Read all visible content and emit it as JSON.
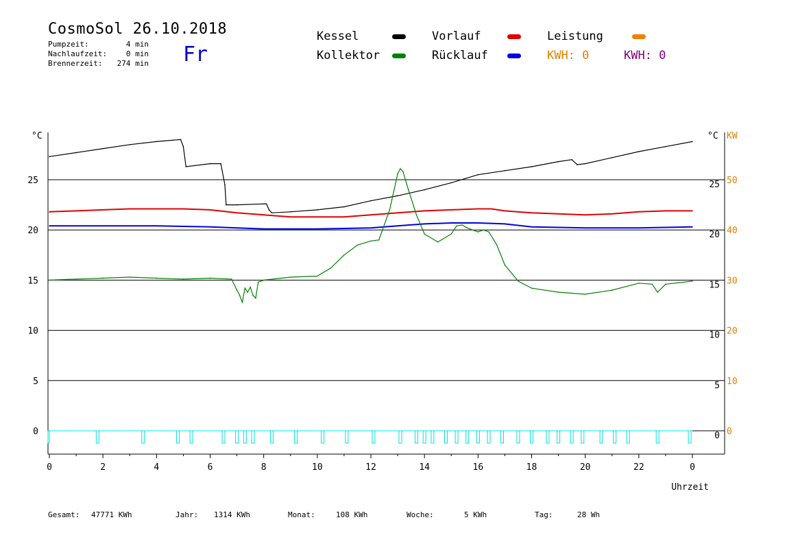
{
  "header": {
    "title": "CosmoSol 26.10.2018",
    "pumpzeit_label": "Pumpzeit:",
    "pumpzeit_value": "4 min",
    "nachlauf_label": "Nachlaufzeit:",
    "nachlauf_value": "0 min",
    "brenner_label": "Brennerzeit:",
    "brenner_value": "274 min",
    "day": "Fr"
  },
  "legend": {
    "kessel": "Kessel",
    "kollektor": "Kollektor",
    "vorlauf": "Vorlauf",
    "ruecklauf": "Rücklauf",
    "leistung": "Leistung",
    "kwh1": "KWH: 0",
    "kwh2": "KWH: 0"
  },
  "colors": {
    "kessel": "#000000",
    "kollektor": "#008000",
    "vorlauf": "#e00000",
    "ruecklauf": "#0000e0",
    "leistung": "#f08000",
    "kwh2": "#800080",
    "pump": "#00e0e0",
    "kw_axis": "#e08000"
  },
  "footer": {
    "gesamt_label": "Gesamt:",
    "gesamt_value": "47771 KWh",
    "jahr_label": "Jahr:",
    "jahr_value": "1314 KWh",
    "monat_label": "Monat:",
    "monat_value": "108 KWh",
    "woche_label": "Woche:",
    "woche_value": "5 KWh",
    "tag_label": "Tag:",
    "tag_value": "28 Wh"
  },
  "chart_data": {
    "type": "line",
    "xlabel": "Uhrzeit",
    "ylabel_left": "°C",
    "ylabel_right_1": "°C",
    "ylabel_right_2": "KW",
    "xlim": [
      0,
      24
    ],
    "ylim": [
      -2.2,
      30
    ],
    "x_ticks": [
      "0",
      "2",
      "4",
      "6",
      "8",
      "10",
      "12",
      "14",
      "16",
      "18",
      "20",
      "22",
      "0"
    ],
    "y_ticks": [
      0,
      5,
      10,
      15,
      20,
      25
    ],
    "kw_ticks": [
      0,
      10,
      20,
      30,
      40,
      50
    ],
    "grid": true,
    "series": [
      {
        "name": "Kessel",
        "color": "#000000",
        "x": [
          0,
          1,
          2,
          3,
          4,
          4.9,
          5,
          5.1,
          6,
          6.4,
          6.55,
          6.6,
          7,
          8.1,
          8.2,
          8.3,
          9,
          10,
          11,
          12,
          13,
          14,
          15,
          16,
          17,
          18,
          19,
          19.5,
          19.7,
          20,
          21,
          22,
          23,
          24
        ],
        "y": [
          27.3,
          27.7,
          28.1,
          28.5,
          28.8,
          29.0,
          28.3,
          26.3,
          26.6,
          26.6,
          24.5,
          22.5,
          22.5,
          22.6,
          22.0,
          21.7,
          21.8,
          22.0,
          22.3,
          22.9,
          23.4,
          24.0,
          24.7,
          25.5,
          25.9,
          26.3,
          26.8,
          27.0,
          26.5,
          26.6,
          27.2,
          27.8,
          28.3,
          28.8
        ]
      },
      {
        "name": "Vorlauf",
        "color": "#e00000",
        "x": [
          0,
          1,
          2,
          3,
          4,
          5,
          6,
          7,
          8,
          9,
          10,
          11,
          12,
          13,
          14,
          15,
          16,
          16.5,
          17,
          18,
          19,
          20,
          21,
          22,
          23,
          24
        ],
        "y": [
          21.8,
          21.9,
          22.0,
          22.1,
          22.1,
          22.1,
          22.0,
          21.7,
          21.5,
          21.3,
          21.3,
          21.3,
          21.5,
          21.7,
          21.9,
          22.0,
          22.1,
          22.1,
          21.9,
          21.7,
          21.6,
          21.5,
          21.6,
          21.8,
          21.9,
          21.9
        ]
      },
      {
        "name": "Rücklauf",
        "color": "#0000e0",
        "x": [
          0,
          2,
          4,
          6,
          8,
          10,
          12,
          13,
          14,
          15,
          16,
          17,
          18,
          20,
          22,
          24
        ],
        "y": [
          20.4,
          20.4,
          20.4,
          20.3,
          20.1,
          20.1,
          20.2,
          20.4,
          20.6,
          20.7,
          20.7,
          20.6,
          20.3,
          20.2,
          20.2,
          20.3
        ],
        "flat_ends": [
          0,
          5,
          10,
          20
        ]
      },
      {
        "name": "Kollektor",
        "color": "#008000",
        "x": [
          0,
          1,
          2,
          3,
          4,
          5,
          6,
          6.8,
          7.0,
          7.1,
          7.2,
          7.3,
          7.4,
          7.5,
          7.6,
          7.7,
          7.8,
          8,
          9,
          10,
          10.5,
          11,
          11.5,
          12,
          12.3,
          12.7,
          13.0,
          13.1,
          13.2,
          13.4,
          13.7,
          14,
          14.5,
          15,
          15.2,
          15.4,
          15.6,
          16,
          16.2,
          16.4,
          16.7,
          17,
          17.5,
          18,
          19,
          20,
          21,
          22,
          22.5,
          22.7,
          23,
          24
        ],
        "y": [
          15.0,
          15.1,
          15.2,
          15.3,
          15.2,
          15.1,
          15.2,
          15.1,
          14.0,
          13.5,
          12.8,
          14.2,
          13.8,
          14.3,
          13.5,
          13.2,
          14.8,
          15.0,
          15.3,
          15.4,
          16.2,
          17.5,
          18.5,
          18.9,
          19.0,
          22.0,
          25.6,
          26.1,
          25.8,
          24.0,
          21.5,
          19.6,
          18.8,
          19.6,
          20.4,
          20.5,
          20.2,
          19.8,
          20.0,
          19.8,
          18.5,
          16.5,
          14.9,
          14.2,
          13.8,
          13.6,
          14.0,
          14.7,
          14.6,
          13.8,
          14.6,
          14.9
        ]
      }
    ],
    "pump_pulses": [
      1.8,
      3.5,
      4.8,
      5.3,
      6.5,
      7.0,
      7.3,
      7.6,
      8.3,
      9.2,
      10.2,
      11.1,
      12.1,
      13.1,
      13.7,
      14.0,
      14.3,
      14.8,
      15.2,
      15.6,
      16.0,
      16.4,
      16.9,
      17.5,
      18.0,
      18.6,
      19.0,
      19.5,
      19.9,
      20.6,
      21.1,
      21.6,
      22.7,
      23.9
    ]
  }
}
